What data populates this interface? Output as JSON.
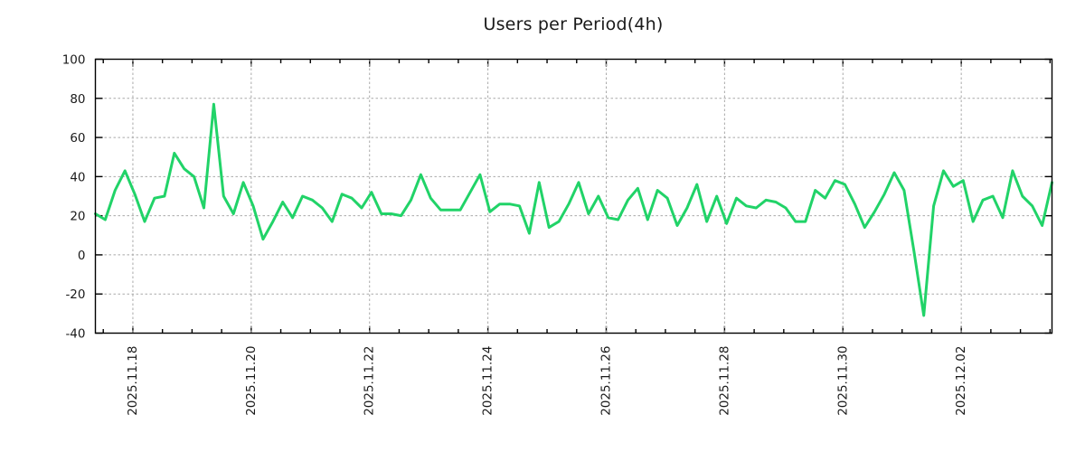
{
  "chart_data": {
    "type": "line",
    "title": "Users per Period(4h)",
    "period": "4h",
    "series": [
      {
        "name": "users",
        "values": [
          21,
          18,
          33,
          43,
          31,
          17,
          29,
          30,
          52,
          44,
          40,
          24,
          77,
          30,
          21,
          37,
          25,
          8,
          17,
          27,
          19,
          30,
          28,
          24,
          17,
          31,
          29,
          24,
          32,
          21,
          21,
          20,
          28,
          41,
          29,
          23,
          23,
          23,
          32,
          41,
          22,
          26,
          26,
          25,
          11,
          37,
          14,
          17,
          26,
          37,
          21,
          30,
          19,
          18,
          28,
          34,
          18,
          33,
          29,
          15,
          24,
          36,
          17,
          30,
          16,
          29,
          25,
          24,
          28,
          27,
          24,
          17,
          17,
          33,
          29,
          38,
          36,
          26,
          14,
          22,
          31,
          42,
          33,
          2,
          -31,
          25,
          43,
          35,
          38,
          17,
          28,
          30,
          19,
          43,
          30,
          25,
          15,
          37
        ]
      }
    ],
    "x_tick_labels": [
      "2025.11.18",
      "2025.11.20",
      "2025.11.22",
      "2025.11.24",
      "2025.11.26",
      "2025.11.28",
      "2025.11.30",
      "2025.12.02"
    ],
    "x_first_major_index": 3.8,
    "x_major_step": 12,
    "x_minor_step": 3,
    "y_ticks": [
      100,
      80,
      60,
      40,
      20,
      0,
      -20,
      -40
    ],
    "ylim": [
      -40,
      100
    ],
    "grid": true,
    "legend": "none",
    "line_color": "#21d368",
    "grid_color": "#a9a9a9",
    "axis_color": "#000000",
    "text_color": "#1a1a1a",
    "background": "#ffffff"
  }
}
